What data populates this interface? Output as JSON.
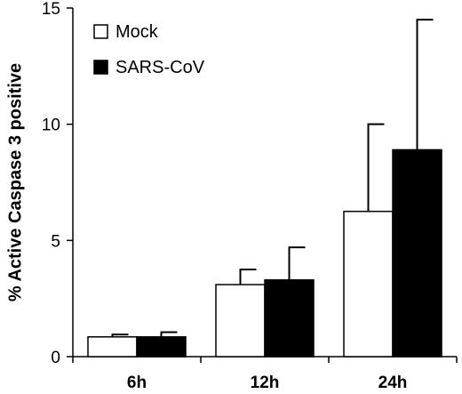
{
  "chart_data": {
    "type": "bar",
    "categories": [
      "6h",
      "12h",
      "24h"
    ],
    "series": [
      {
        "name": "Mock",
        "values": [
          0.85,
          3.1,
          6.25
        ],
        "errors": [
          0.1,
          0.65,
          3.75
        ],
        "color": "#ffffff"
      },
      {
        "name": "SARS-CoV",
        "values": [
          0.85,
          3.3,
          8.9
        ],
        "errors": [
          0.2,
          1.4,
          5.6
        ],
        "color": "#000000"
      }
    ],
    "ylabel": "% Active Caspase 3 positive",
    "xlabel": "",
    "ylim": [
      0,
      15
    ],
    "yticks": [
      "0",
      "5",
      "10",
      "15"
    ],
    "grid": false,
    "legend_position": "top-left"
  }
}
